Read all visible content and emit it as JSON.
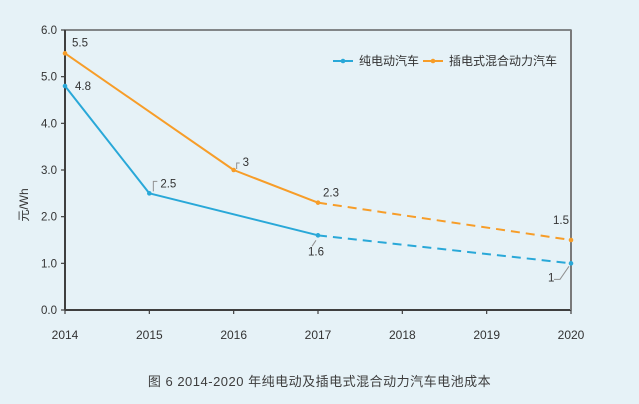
{
  "figure": {
    "caption": "图 6  2014-2020 年纯电动及插电式混合动力汽车电池成本"
  },
  "colors": {
    "background": "#e6f2f7",
    "axis": "#3f3f3f",
    "right_border": "#7a7a7a",
    "text": "#333333",
    "leader": "#909090",
    "pure_ev": "#29a8d8",
    "phev": "#f79d28"
  },
  "chart_data": {
    "type": "line",
    "title": "",
    "xlabel": "",
    "ylabel": "元/Wh",
    "x_ticks": [
      "2014",
      "2015",
      "2016",
      "2017",
      "2018",
      "2019",
      "2020"
    ],
    "y_ticks": [
      "0.0",
      "1.0",
      "2.0",
      "3.0",
      "4.0",
      "5.0",
      "6.0"
    ],
    "xlim": [
      2014,
      2020
    ],
    "ylim": [
      0,
      6
    ],
    "grid": false,
    "legend_position": "top-center",
    "dashed_note": "segments after 2017 are projections drawn dashed",
    "series": [
      {
        "id": "pure-ev",
        "name": "纯电动汽车",
        "color": "#29a8d8",
        "points": [
          [
            2014,
            4.8
          ],
          [
            2015,
            2.5
          ],
          [
            2017,
            1.6
          ],
          [
            2020,
            1
          ]
        ],
        "solid": [
          [
            2014,
            4.8
          ],
          [
            2015,
            2.5
          ],
          [
            2017,
            1.6
          ]
        ],
        "dashed": [
          [
            2017,
            1.6
          ],
          [
            2020,
            1
          ]
        ],
        "labels": [
          {
            "text": "4.8",
            "x": 2014,
            "y": 4.8,
            "dx": 10,
            "dy": 4,
            "anchor": "start"
          },
          {
            "text": "2.5",
            "x": 2015,
            "y": 2.5,
            "dx": 11,
            "dy": -6,
            "anchor": "start",
            "leader": [
              [
                8,
                -12
              ],
              [
                4,
                -12
              ],
              [
                4,
                -2
              ]
            ]
          },
          {
            "text": "1.6",
            "x": 2017,
            "y": 1.6,
            "dx": -10,
            "dy": 20,
            "anchor": "start",
            "leader": [
              [
                -2,
                5
              ],
              [
                -6,
                11
              ]
            ]
          },
          {
            "text": "1",
            "x": 2020,
            "y": 1,
            "dx": -23,
            "dy": 18,
            "anchor": "start",
            "leader": [
              [
                -17,
                16
              ],
              [
                -11,
                16
              ],
              [
                -2,
                3
              ]
            ]
          }
        ]
      },
      {
        "id": "phev",
        "name": "插电式混合动力汽车",
        "color": "#f79d28",
        "points": [
          [
            2014,
            5.5
          ],
          [
            2016,
            3
          ],
          [
            2017,
            2.3
          ],
          [
            2020,
            1.5
          ]
        ],
        "solid": [
          [
            2014,
            5.5
          ],
          [
            2016,
            3
          ],
          [
            2017,
            2.3
          ]
        ],
        "dashed": [
          [
            2017,
            2.3
          ],
          [
            2020,
            1.5
          ]
        ],
        "labels": [
          {
            "text": "5.5",
            "x": 2014,
            "y": 5.5,
            "dx": 7,
            "dy": -7,
            "anchor": "start"
          },
          {
            "text": "3",
            "x": 2016,
            "y": 3,
            "dx": 9,
            "dy": -4,
            "anchor": "start",
            "leader": [
              [
                6,
                -7
              ],
              [
                3,
                -7
              ],
              [
                3,
                -1
              ]
            ]
          },
          {
            "text": "2.3",
            "x": 2017,
            "y": 2.3,
            "dx": 5,
            "dy": -6,
            "anchor": "start"
          },
          {
            "text": "1.5",
            "x": 2020,
            "y": 1.5,
            "dx": -18,
            "dy": -16,
            "anchor": "start"
          }
        ]
      }
    ]
  }
}
